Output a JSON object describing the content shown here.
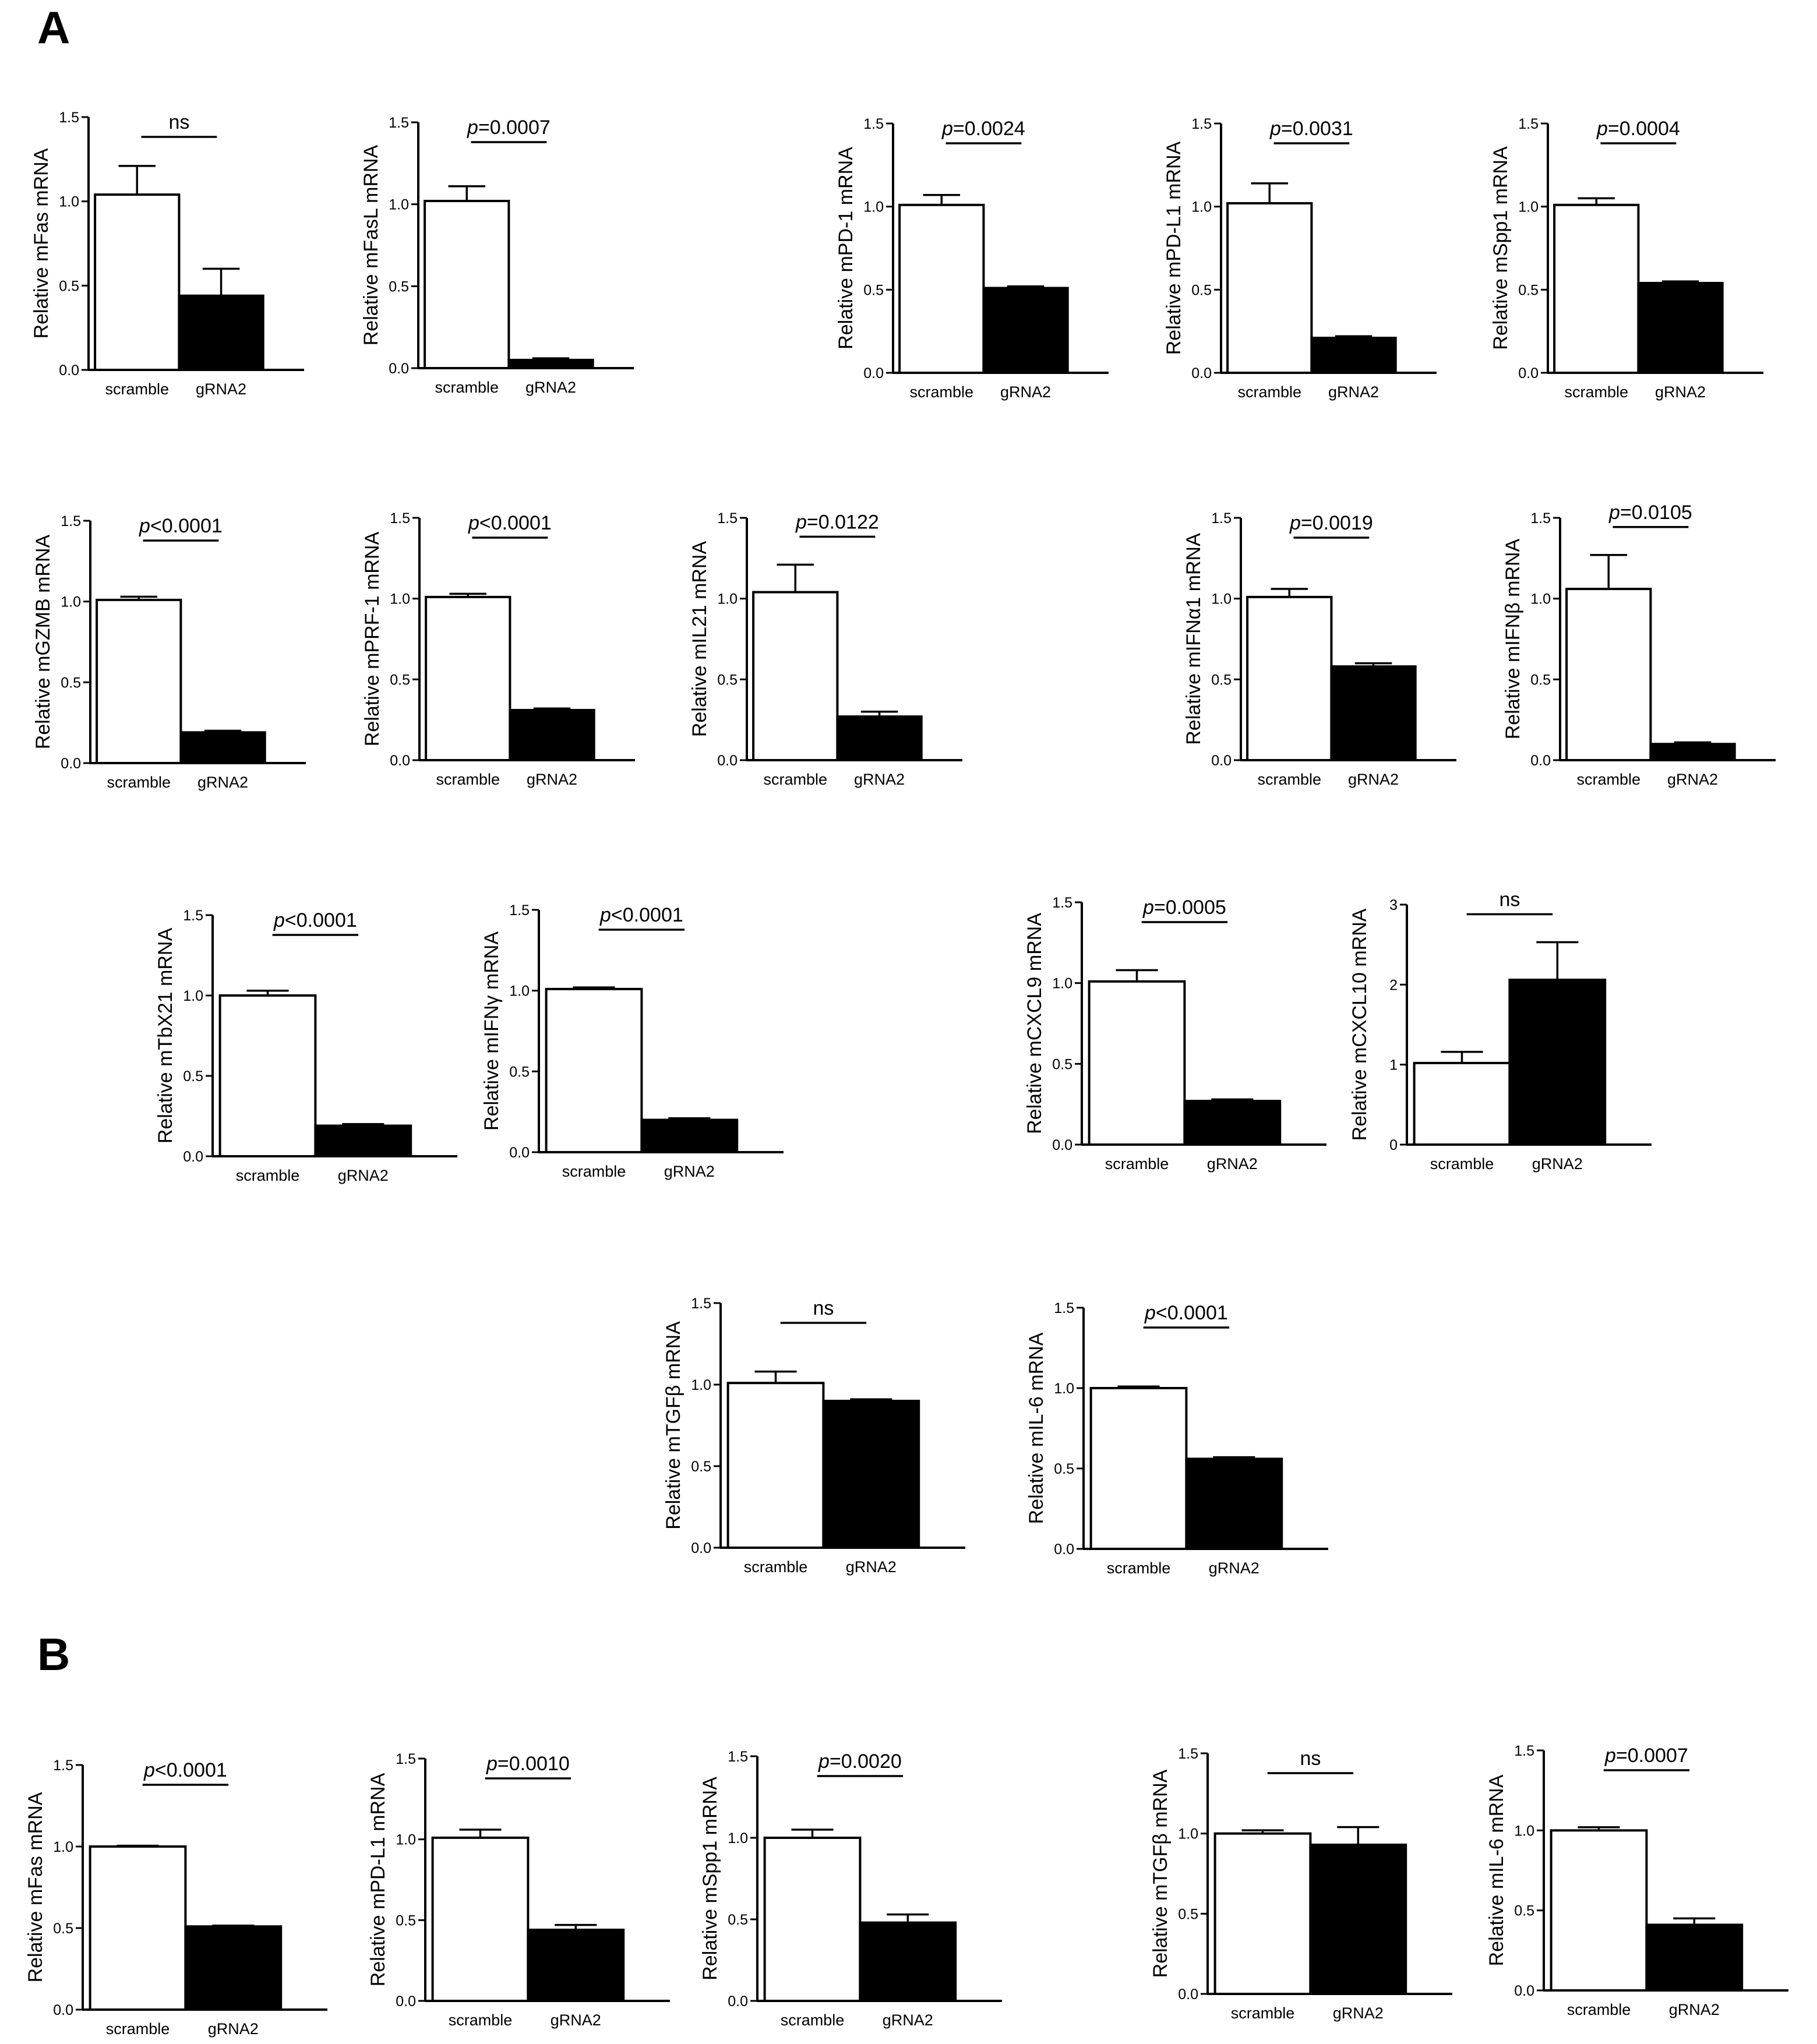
{
  "figure": {
    "panel_labels": [
      "A",
      "B"
    ]
  },
  "chart_data": [
    {
      "panel": "A",
      "type": "bar",
      "ylabel": "Relative mFas mRNA",
      "categories": [
        "scramble",
        "gRNA2"
      ],
      "values": [
        1.04,
        0.44
      ],
      "errors": [
        0.17,
        0.16
      ],
      "ylim": [
        0,
        1.5
      ],
      "yticks": [
        "0.0",
        "0.5",
        "1.0",
        "1.5"
      ],
      "significance": "ns",
      "sig_p": ""
    },
    {
      "panel": "A",
      "type": "bar",
      "ylabel": "Relative mFasL mRNA",
      "categories": [
        "scramble",
        "gRNA2"
      ],
      "values": [
        1.02,
        0.05
      ],
      "errors": [
        0.09,
        0.01
      ],
      "ylim": [
        0,
        1.5
      ],
      "yticks": [
        "0.0",
        "0.5",
        "1.0",
        "1.5"
      ],
      "significance": "=0.0007",
      "sig_p": "p"
    },
    {
      "panel": "A",
      "type": "bar",
      "ylabel": "Relative mPD-1 mRNA",
      "categories": [
        "scramble",
        "gRNA2"
      ],
      "values": [
        1.01,
        0.51
      ],
      "errors": [
        0.06,
        0.01
      ],
      "ylim": [
        0,
        1.5
      ],
      "yticks": [
        "0.0",
        "0.5",
        "1.0",
        "1.5"
      ],
      "significance": "=0.0024",
      "sig_p": "p"
    },
    {
      "panel": "A",
      "type": "bar",
      "ylabel": "Relative mPD-L1 mRNA",
      "categories": [
        "scramble",
        "gRNA2"
      ],
      "values": [
        1.02,
        0.21
      ],
      "errors": [
        0.12,
        0.01
      ],
      "ylim": [
        0,
        1.5
      ],
      "yticks": [
        "0.0",
        "0.5",
        "1.0",
        "1.5"
      ],
      "significance": "=0.0031",
      "sig_p": "p"
    },
    {
      "panel": "A",
      "type": "bar",
      "ylabel": "Relative mSpp1 mRNA",
      "categories": [
        "scramble",
        "gRNA2"
      ],
      "values": [
        1.01,
        0.54
      ],
      "errors": [
        0.04,
        0.01
      ],
      "ylim": [
        0,
        1.5
      ],
      "yticks": [
        "0.0",
        "0.5",
        "1.0",
        "1.5"
      ],
      "significance": "=0.0004",
      "sig_p": "p"
    },
    {
      "panel": "A",
      "type": "bar",
      "ylabel": "Relative mGZMB mRNA",
      "categories": [
        "scramble",
        "gRNA2"
      ],
      "values": [
        1.01,
        0.19
      ],
      "errors": [
        0.02,
        0.01
      ],
      "ylim": [
        0,
        1.5
      ],
      "yticks": [
        "0.0",
        "0.5",
        "1.0",
        "1.5"
      ],
      "significance": "<0.0001",
      "sig_p": "p"
    },
    {
      "panel": "A",
      "type": "bar",
      "ylabel": "Relative mPRF-1 mRNA",
      "categories": [
        "scramble",
        "gRNA2"
      ],
      "values": [
        1.01,
        0.31
      ],
      "errors": [
        0.02,
        0.01
      ],
      "ylim": [
        0,
        1.5
      ],
      "yticks": [
        "0.0",
        "0.5",
        "1.0",
        "1.5"
      ],
      "significance": "<0.0001",
      "sig_p": "p"
    },
    {
      "panel": "A",
      "type": "bar",
      "ylabel": "Relative mIL21 mRNA",
      "categories": [
        "scramble",
        "gRNA2"
      ],
      "values": [
        1.04,
        0.27
      ],
      "errors": [
        0.17,
        0.03
      ],
      "ylim": [
        0,
        1.5
      ],
      "yticks": [
        "0.0",
        "0.5",
        "1.0",
        "1.5"
      ],
      "significance": "=0.0122",
      "sig_p": "p"
    },
    {
      "panel": "A",
      "type": "bar",
      "ylabel": "Relative mIFNα1 mRNA",
      "categories": [
        "scramble",
        "gRNA2"
      ],
      "values": [
        1.01,
        0.58
      ],
      "errors": [
        0.05,
        0.02
      ],
      "ylim": [
        0,
        1.5
      ],
      "yticks": [
        "0.0",
        "0.5",
        "1.0",
        "1.5"
      ],
      "significance": "=0.0019",
      "sig_p": "p"
    },
    {
      "panel": "A",
      "type": "bar",
      "ylabel": "Relative mIFNβ mRNA",
      "categories": [
        "scramble",
        "gRNA2"
      ],
      "values": [
        1.06,
        0.1
      ],
      "errors": [
        0.21,
        0.01
      ],
      "ylim": [
        0,
        1.5
      ],
      "yticks": [
        "0.0",
        "0.5",
        "1.0",
        "1.5"
      ],
      "significance": "=0.0105",
      "sig_p": "p"
    },
    {
      "panel": "A",
      "type": "bar",
      "ylabel": "Relative mTbX21 mRNA",
      "categories": [
        "scramble",
        "gRNA2"
      ],
      "values": [
        1.0,
        0.19
      ],
      "errors": [
        0.03,
        0.01
      ],
      "ylim": [
        0,
        1.5
      ],
      "yticks": [
        "0.0",
        "0.5",
        "1.0",
        "1.5"
      ],
      "significance": "<0.0001",
      "sig_p": "p"
    },
    {
      "panel": "A",
      "type": "bar",
      "ylabel": "Relative mIFNγ mRNA",
      "categories": [
        "scramble",
        "gRNA2"
      ],
      "values": [
        1.01,
        0.2
      ],
      "errors": [
        0.01,
        0.01
      ],
      "ylim": [
        0,
        1.5
      ],
      "yticks": [
        "0.0",
        "0.5",
        "1.0",
        "1.5"
      ],
      "significance": "<0.0001",
      "sig_p": "p"
    },
    {
      "panel": "A",
      "type": "bar",
      "ylabel": "Relative mCXCL9 mRNA",
      "categories": [
        "scramble",
        "gRNA2"
      ],
      "values": [
        1.01,
        0.27
      ],
      "errors": [
        0.07,
        0.01
      ],
      "ylim": [
        0,
        1.5
      ],
      "yticks": [
        "0.0",
        "0.5",
        "1.0",
        "1.5"
      ],
      "significance": "=0.0005",
      "sig_p": "p"
    },
    {
      "panel": "A",
      "type": "bar",
      "ylabel": "Relative mCXCL10 mRNA",
      "categories": [
        "scramble",
        "gRNA2"
      ],
      "values": [
        1.02,
        2.06
      ],
      "errors": [
        0.14,
        0.47
      ],
      "ylim": [
        0,
        3
      ],
      "yticks": [
        "0",
        "1",
        "2",
        "3"
      ],
      "significance": "ns",
      "sig_p": ""
    },
    {
      "panel": "A",
      "type": "bar",
      "ylabel": "Relative mTGFβ mRNA",
      "categories": [
        "scramble",
        "gRNA2"
      ],
      "values": [
        1.01,
        0.9
      ],
      "errors": [
        0.07,
        0.01
      ],
      "ylim": [
        0,
        1.5
      ],
      "yticks": [
        "0.0",
        "0.5",
        "1.0",
        "1.5"
      ],
      "significance": "ns",
      "sig_p": ""
    },
    {
      "panel": "A",
      "type": "bar",
      "ylabel": "Relative mIL-6 mRNA",
      "categories": [
        "scramble",
        "gRNA2"
      ],
      "values": [
        1.0,
        0.56
      ],
      "errors": [
        0.01,
        0.01
      ],
      "ylim": [
        0,
        1.5
      ],
      "yticks": [
        "0.0",
        "0.5",
        "1.0",
        "1.5"
      ],
      "significance": "<0.0001",
      "sig_p": "p"
    },
    {
      "panel": "B",
      "type": "bar",
      "ylabel": "Relative mFas mRNA",
      "categories": [
        "scramble",
        "gRNA2"
      ],
      "values": [
        1.0,
        0.51
      ],
      "errors": [
        0.005,
        0.005
      ],
      "ylim": [
        0,
        1.5
      ],
      "yticks": [
        "0.0",
        "0.5",
        "1.0",
        "1.5"
      ],
      "significance": "<0.0001",
      "sig_p": "p"
    },
    {
      "panel": "B",
      "type": "bar",
      "ylabel": "Relative mPD-L1 mRNA",
      "categories": [
        "scramble",
        "gRNA2"
      ],
      "values": [
        1.01,
        0.44
      ],
      "errors": [
        0.05,
        0.03
      ],
      "ylim": [
        0,
        1.5
      ],
      "yticks": [
        "0.0",
        "0.5",
        "1.0",
        "1.5"
      ],
      "significance": "=0.0010",
      "sig_p": "p"
    },
    {
      "panel": "B",
      "type": "bar",
      "ylabel": "Relative mSpp1 mRNA",
      "categories": [
        "scramble",
        "gRNA2"
      ],
      "values": [
        1.0,
        0.48
      ],
      "errors": [
        0.05,
        0.05
      ],
      "ylim": [
        0,
        1.5
      ],
      "yticks": [
        "0.0",
        "0.5",
        "1.0",
        "1.5"
      ],
      "significance": "=0.0020",
      "sig_p": "p"
    },
    {
      "panel": "B",
      "type": "bar",
      "ylabel": "Relative mTGFβ mRNA",
      "categories": [
        "scramble",
        "gRNA2"
      ],
      "values": [
        1.0,
        0.93
      ],
      "errors": [
        0.02,
        0.11
      ],
      "ylim": [
        0,
        1.5
      ],
      "yticks": [
        "0.0",
        "0.5",
        "1.0",
        "1.5"
      ],
      "significance": "ns",
      "sig_p": ""
    },
    {
      "panel": "B",
      "type": "bar",
      "ylabel": "Relative mIL-6 mRNA",
      "categories": [
        "scramble",
        "gRNA2"
      ],
      "values": [
        1.0,
        0.41
      ],
      "errors": [
        0.02,
        0.04
      ],
      "ylim": [
        0,
        1.5
      ],
      "yticks": [
        "0.0",
        "0.5",
        "1.0",
        "1.5"
      ],
      "significance": "=0.0007",
      "sig_p": "p"
    }
  ]
}
